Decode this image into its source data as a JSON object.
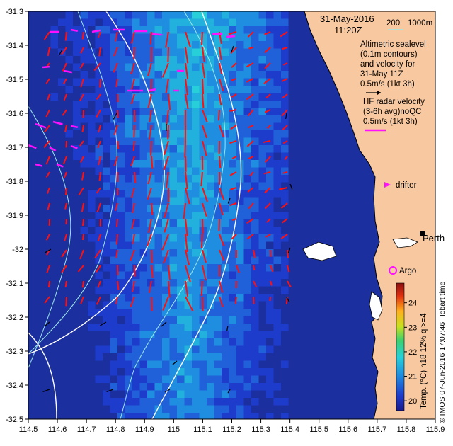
{
  "header": {
    "date": "31-May-2016",
    "time": "11:20Z",
    "bathy_label_200": "200",
    "bathy_label_1000": "1000m"
  },
  "legend": {
    "altimetry_lines": [
      "Altimetric sealevel",
      "(0.1m contours)",
      "and velocity for",
      "31-May 11Z",
      "0.5m/s (1kt 3h)"
    ],
    "hf_lines": [
      "HF radar velocity",
      "(3-6h avg)noQC",
      "0.5m/s (1kt 3h)"
    ],
    "drifter_label": "drifter",
    "argo_label": "Argo",
    "city_label": "Perth"
  },
  "colorbar": {
    "title": "Temp. (°C) n18 12% ql>=4",
    "ticks": [
      "24",
      "23",
      "22",
      "21",
      "20"
    ],
    "min": 19.6,
    "max": 24.8
  },
  "credit": "© IMOS 07-Jun-2016 17:07:46 Hobart time",
  "axes": {
    "lon_ticks": [
      "114.5",
      "114.6",
      "114.7",
      "114.8",
      "114.9",
      "115",
      "115.1",
      "115.2",
      "115.3",
      "115.4",
      "115.5",
      "115.6",
      "115.7",
      "115.8",
      "115.9"
    ],
    "lat_ticks": [
      "-31.3",
      "-31.4",
      "-31.5",
      "-31.6",
      "-31.7",
      "-31.8",
      "-31.9",
      "-32",
      "-32.1",
      "-32.2",
      "-32.3",
      "-32.4",
      "-32.5"
    ],
    "lon_range": [
      114.5,
      115.9
    ],
    "lat_range": [
      -32.5,
      -31.3
    ]
  },
  "colors": {
    "land": "#f8c8a0",
    "altimetry_arrow": "#ff1010",
    "hf_arrow": "#ff10ff",
    "bathy_contour": "#9ee8e8",
    "sealevel_contour": "#ffffff",
    "argo": "#ff10ff"
  }
}
